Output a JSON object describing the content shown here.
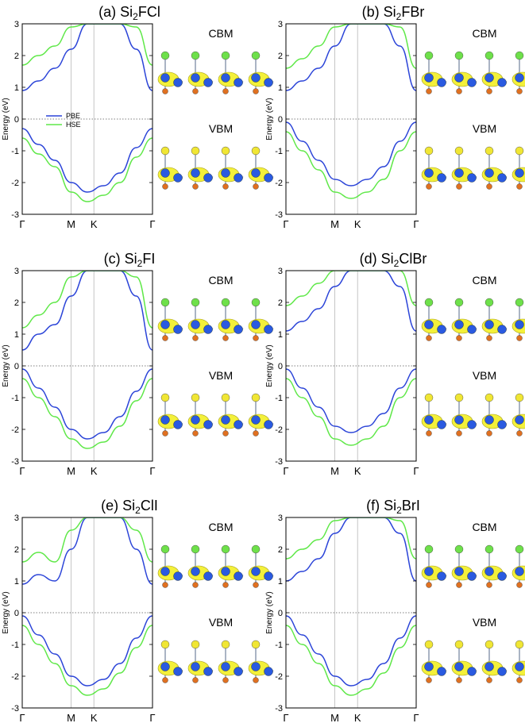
{
  "figure": {
    "ylabel": "Energy (eV)",
    "state_labels": {
      "cbm": "CBM",
      "vbm": "VBM"
    },
    "kpoint_labels": [
      "Γ",
      "M",
      "K",
      "Γ"
    ],
    "legend": [
      {
        "name": "PBE",
        "color": "#2b44d8"
      },
      {
        "name": "HSE",
        "color": "#5fe848"
      }
    ],
    "ylim": [
      -3,
      3
    ],
    "yticks": [
      "3",
      "2",
      "1",
      "0",
      "-1",
      "-2",
      "-3"
    ],
    "ytick_values": [
      3,
      2,
      1,
      0,
      -1,
      -2,
      -3
    ]
  },
  "chart_data": [
    {
      "type": "line",
      "panel_tag": "(a)",
      "formula_prefix": "Si",
      "formula_subscript": "2",
      "formula_suffix": "FCl",
      "x": [
        0,
        0.25,
        0.5,
        0.75,
        1.0,
        1.25,
        1.5,
        1.75,
        2.0
      ],
      "xlabel_ticks": [
        "Γ",
        "M",
        "K",
        "Γ"
      ],
      "ylim": [
        -3,
        3
      ],
      "series": [
        {
          "name": "PBE",
          "values": [
            0.9,
            1.2,
            1.6,
            2.2,
            3.0,
            3.0,
            3.0,
            2.2,
            0.9
          ]
        },
        {
          "name": "HSE",
          "values": [
            1.7,
            2.0,
            2.3,
            2.9,
            3.0,
            3.0,
            3.0,
            2.9,
            1.7
          ]
        },
        {
          "name": "PBE",
          "values": [
            -0.3,
            -0.8,
            -1.3,
            -2.0,
            -2.3,
            -2.1,
            -1.7,
            -0.9,
            -0.3
          ]
        },
        {
          "name": "HSE",
          "values": [
            -0.6,
            -1.1,
            -1.5,
            -2.3,
            -2.6,
            -2.4,
            -2.0,
            -1.2,
            -0.6
          ]
        }
      ]
    },
    {
      "type": "line",
      "panel_tag": "(b)",
      "formula_prefix": "Si",
      "formula_subscript": "2",
      "formula_suffix": "FBr",
      "x": [
        0,
        0.25,
        0.5,
        0.75,
        1.0,
        1.25,
        1.5,
        1.75,
        2.0
      ],
      "xlabel_ticks": [
        "Γ",
        "M",
        "K",
        "Γ"
      ],
      "ylim": [
        -3,
        3
      ],
      "series": [
        {
          "name": "PBE",
          "values": [
            0.9,
            1.2,
            1.6,
            2.3,
            3.0,
            3.0,
            3.0,
            2.3,
            0.9
          ]
        },
        {
          "name": "HSE",
          "values": [
            1.6,
            1.9,
            2.3,
            2.9,
            3.0,
            3.0,
            3.0,
            2.9,
            1.6
          ]
        },
        {
          "name": "PBE",
          "values": [
            -0.1,
            -0.7,
            -1.3,
            -1.9,
            -2.1,
            -1.9,
            -1.5,
            -0.7,
            -0.1
          ]
        },
        {
          "name": "HSE",
          "values": [
            -0.4,
            -1.0,
            -1.6,
            -2.3,
            -2.5,
            -2.3,
            -1.9,
            -1.0,
            -0.4
          ]
        }
      ]
    },
    {
      "type": "line",
      "panel_tag": "(c)",
      "formula_prefix": "Si",
      "formula_subscript": "2",
      "formula_suffix": "FI",
      "x": [
        0,
        0.25,
        0.5,
        0.75,
        1.0,
        1.25,
        1.5,
        1.75,
        2.0
      ],
      "xlabel_ticks": [
        "Γ",
        "M",
        "K",
        "Γ"
      ],
      "ylim": [
        -3,
        3
      ],
      "series": [
        {
          "name": "PBE",
          "values": [
            0.5,
            1.0,
            1.3,
            2.2,
            3.0,
            3.0,
            3.0,
            2.2,
            0.5
          ]
        },
        {
          "name": "HSE",
          "values": [
            1.2,
            1.6,
            2.0,
            2.8,
            3.0,
            3.0,
            3.0,
            2.8,
            1.2
          ]
        },
        {
          "name": "PBE",
          "values": [
            -0.1,
            -0.7,
            -1.3,
            -2.0,
            -2.3,
            -2.1,
            -1.6,
            -0.8,
            -0.1
          ]
        },
        {
          "name": "HSE",
          "values": [
            -0.4,
            -1.0,
            -1.6,
            -2.3,
            -2.6,
            -2.4,
            -1.9,
            -1.1,
            -0.4
          ]
        }
      ]
    },
    {
      "type": "line",
      "panel_tag": "(d)",
      "formula_prefix": "Si",
      "formula_subscript": "2",
      "formula_suffix": "ClBr",
      "x": [
        0,
        0.25,
        0.5,
        0.75,
        1.0,
        1.25,
        1.5,
        1.75,
        2.0
      ],
      "xlabel_ticks": [
        "Γ",
        "M",
        "K",
        "Γ"
      ],
      "ylim": [
        -3,
        3
      ],
      "series": [
        {
          "name": "PBE",
          "values": [
            1.1,
            1.4,
            1.8,
            2.5,
            3.0,
            3.0,
            3.0,
            2.5,
            1.1
          ]
        },
        {
          "name": "HSE",
          "values": [
            1.9,
            2.2,
            2.6,
            3.0,
            3.0,
            3.0,
            3.0,
            3.0,
            1.9
          ]
        },
        {
          "name": "PBE",
          "values": [
            -0.1,
            -0.7,
            -1.3,
            -1.9,
            -2.1,
            -1.9,
            -1.5,
            -0.7,
            -0.1
          ]
        },
        {
          "name": "HSE",
          "values": [
            -0.4,
            -1.0,
            -1.6,
            -2.3,
            -2.5,
            -2.3,
            -1.9,
            -1.0,
            -0.4
          ]
        }
      ]
    },
    {
      "type": "line",
      "panel_tag": "(e)",
      "formula_prefix": "Si",
      "formula_subscript": "2",
      "formula_suffix": "ClI",
      "x": [
        0,
        0.25,
        0.5,
        0.75,
        1.0,
        1.25,
        1.5,
        1.75,
        2.0
      ],
      "xlabel_ticks": [
        "Γ",
        "M",
        "K",
        "Γ"
      ],
      "ylim": [
        -3,
        3
      ],
      "series": [
        {
          "name": "PBE",
          "values": [
            0.9,
            1.2,
            1.0,
            2.0,
            3.0,
            3.0,
            3.0,
            2.0,
            0.9
          ]
        },
        {
          "name": "HSE",
          "values": [
            1.6,
            1.9,
            1.6,
            2.6,
            3.0,
            3.0,
            3.0,
            2.6,
            1.6
          ]
        },
        {
          "name": "PBE",
          "values": [
            -0.1,
            -0.7,
            -1.3,
            -2.0,
            -2.3,
            -2.1,
            -1.6,
            -0.8,
            -0.1
          ]
        },
        {
          "name": "HSE",
          "values": [
            -0.4,
            -1.0,
            -1.6,
            -2.3,
            -2.6,
            -2.4,
            -1.9,
            -1.1,
            -0.4
          ]
        }
      ]
    },
    {
      "type": "line",
      "panel_tag": "(f)",
      "formula_prefix": "Si",
      "formula_subscript": "2",
      "formula_suffix": "BrI",
      "x": [
        0,
        0.25,
        0.5,
        0.75,
        1.0,
        1.25,
        1.5,
        1.75,
        2.0
      ],
      "xlabel_ticks": [
        "Γ",
        "M",
        "K",
        "Γ"
      ],
      "ylim": [
        -3,
        3
      ],
      "series": [
        {
          "name": "PBE",
          "values": [
            1.0,
            1.3,
            1.7,
            2.5,
            3.0,
            3.0,
            3.0,
            2.5,
            1.0
          ]
        },
        {
          "name": "HSE",
          "values": [
            1.7,
            2.0,
            2.3,
            2.9,
            3.0,
            3.0,
            3.0,
            2.9,
            1.7
          ]
        },
        {
          "name": "PBE",
          "values": [
            -0.1,
            -0.7,
            -1.3,
            -2.0,
            -2.3,
            -2.1,
            -1.6,
            -0.8,
            -0.1
          ]
        },
        {
          "name": "HSE",
          "values": [
            -0.4,
            -1.0,
            -1.6,
            -2.3,
            -2.6,
            -2.4,
            -1.9,
            -1.1,
            -0.4
          ]
        }
      ]
    }
  ]
}
